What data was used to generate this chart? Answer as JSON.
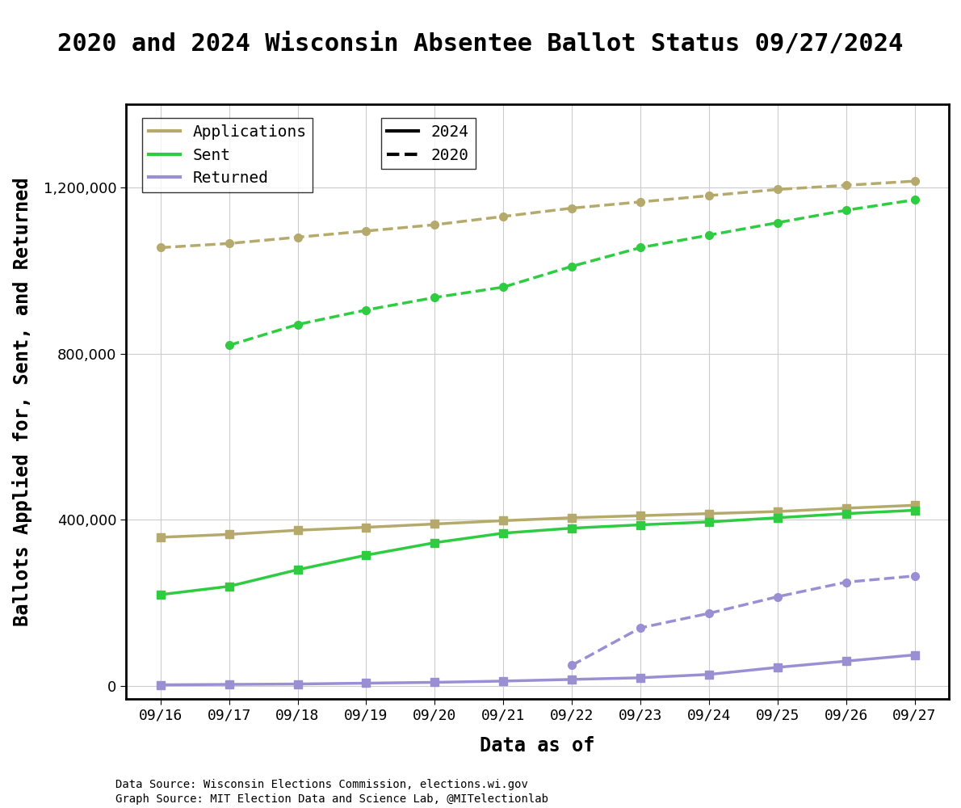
{
  "title": "2020 and 2024 Wisconsin Absentee Ballot Status 09/27/2024",
  "xlabel": "Data as of",
  "ylabel": "Ballots Applied for, Sent, and Returned",
  "footnote1": "Data Source: Wisconsin Elections Commission, elections.wi.gov",
  "footnote2": "Graph Source: MIT Election Data and Science Lab, @MITelectionlab",
  "dates": [
    "09/16",
    "09/17",
    "09/18",
    "09/19",
    "09/20",
    "09/21",
    "09/22",
    "09/23",
    "09/24",
    "09/25",
    "09/26",
    "09/27"
  ],
  "y2024_applications": [
    358000,
    365000,
    375000,
    382000,
    390000,
    398000,
    405000,
    410000,
    415000,
    420000,
    428000,
    435000
  ],
  "y2024_sent": [
    220000,
    240000,
    280000,
    315000,
    345000,
    368000,
    380000,
    388000,
    395000,
    405000,
    415000,
    423000
  ],
  "y2024_returned": [
    3000,
    4000,
    5000,
    7000,
    9000,
    12000,
    16000,
    20000,
    28000,
    45000,
    60000,
    75000
  ],
  "y2020_applications": [
    1055000,
    1065000,
    1080000,
    1095000,
    1110000,
    1130000,
    1150000,
    1165000,
    1180000,
    1195000,
    1205000,
    1215000
  ],
  "y2020_sent": [
    null,
    820000,
    870000,
    905000,
    935000,
    960000,
    1010000,
    1055000,
    1085000,
    1115000,
    1145000,
    1170000
  ],
  "y2020_returned": [
    null,
    null,
    null,
    null,
    null,
    null,
    50000,
    140000,
    175000,
    215000,
    250000,
    265000
  ],
  "color_applications": "#b5aa6b",
  "color_sent": "#2ecc40",
  "color_returned": "#9b8fd4",
  "ylim": [
    -30000,
    1400000
  ],
  "yticks": [
    0,
    400000,
    800000,
    1200000
  ],
  "background_color": "#ffffff",
  "grid_color": "#cccccc",
  "title_fontsize": 22,
  "axis_label_fontsize": 17,
  "tick_fontsize": 13,
  "legend_fontsize": 14,
  "footnote_fontsize": 10,
  "lw": 2.5,
  "ms": 7
}
